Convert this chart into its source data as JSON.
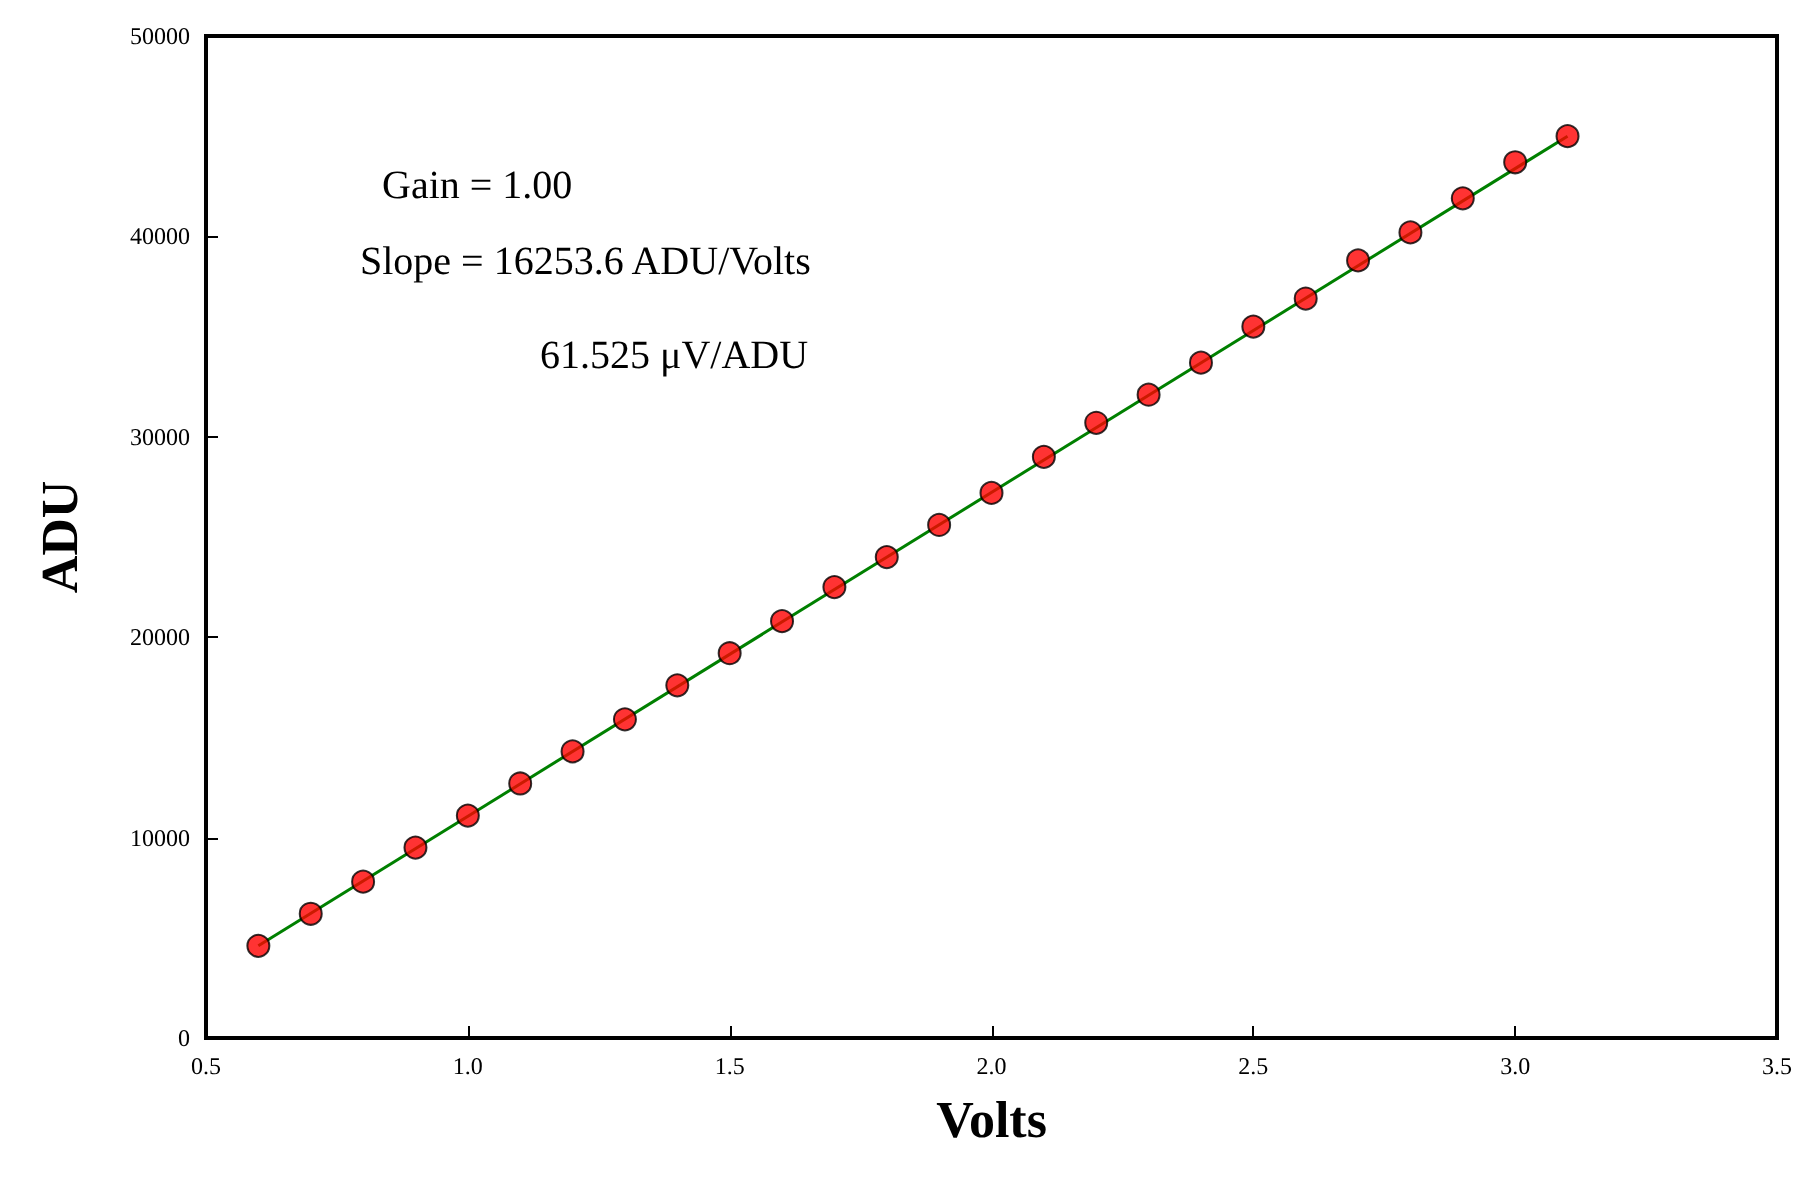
{
  "chart_data": {
    "type": "scatter",
    "xlabel": "Volts",
    "ylabel": "ADU",
    "annotations": [
      "Gain = 1.00",
      "Slope = 16253.6 ADU/Volts",
      "61.525 μV/ADU"
    ],
    "x": [
      0.6,
      0.7,
      0.8,
      0.9,
      1.0,
      1.1,
      1.2,
      1.3,
      1.4,
      1.5,
      1.6,
      1.7,
      1.8,
      1.9,
      2.0,
      2.1,
      2.2,
      2.3,
      2.4,
      2.5,
      2.6,
      2.7,
      2.8,
      2.9,
      3.0,
      3.1
    ],
    "series": [
      {
        "color": "#ff0000",
        "marker": "circle",
        "values": [
          4600,
          6200,
          7800,
          9500,
          11100,
          12700,
          14300,
          15900,
          17600,
          19200,
          20800,
          22500,
          24000,
          25600,
          27200,
          29000,
          30700,
          32100,
          33700,
          35500,
          36900,
          38800,
          40200,
          41900,
          43700,
          45000
        ]
      },
      {
        "type": "line",
        "color": "#008000",
        "marker": "none",
        "line_style": "solid",
        "x": [
          0.6,
          3.1
        ],
        "values": [
          4600,
          45000
        ]
      }
    ],
    "xlim": [
      0.5,
      3.5
    ],
    "xticks": [
      0.5,
      {
        "value": 1.0,
        "label": "1.0"
      },
      1.5,
      {
        "value": 2.0,
        "label": "2.0"
      },
      2.5,
      {
        "value": 3.0,
        "label": "3.0"
      },
      3.5
    ],
    "ylim": [
      0,
      50000
    ],
    "yticks": [
      0,
      10000,
      20000,
      30000,
      40000,
      50000
    ],
    "grid": false
  }
}
